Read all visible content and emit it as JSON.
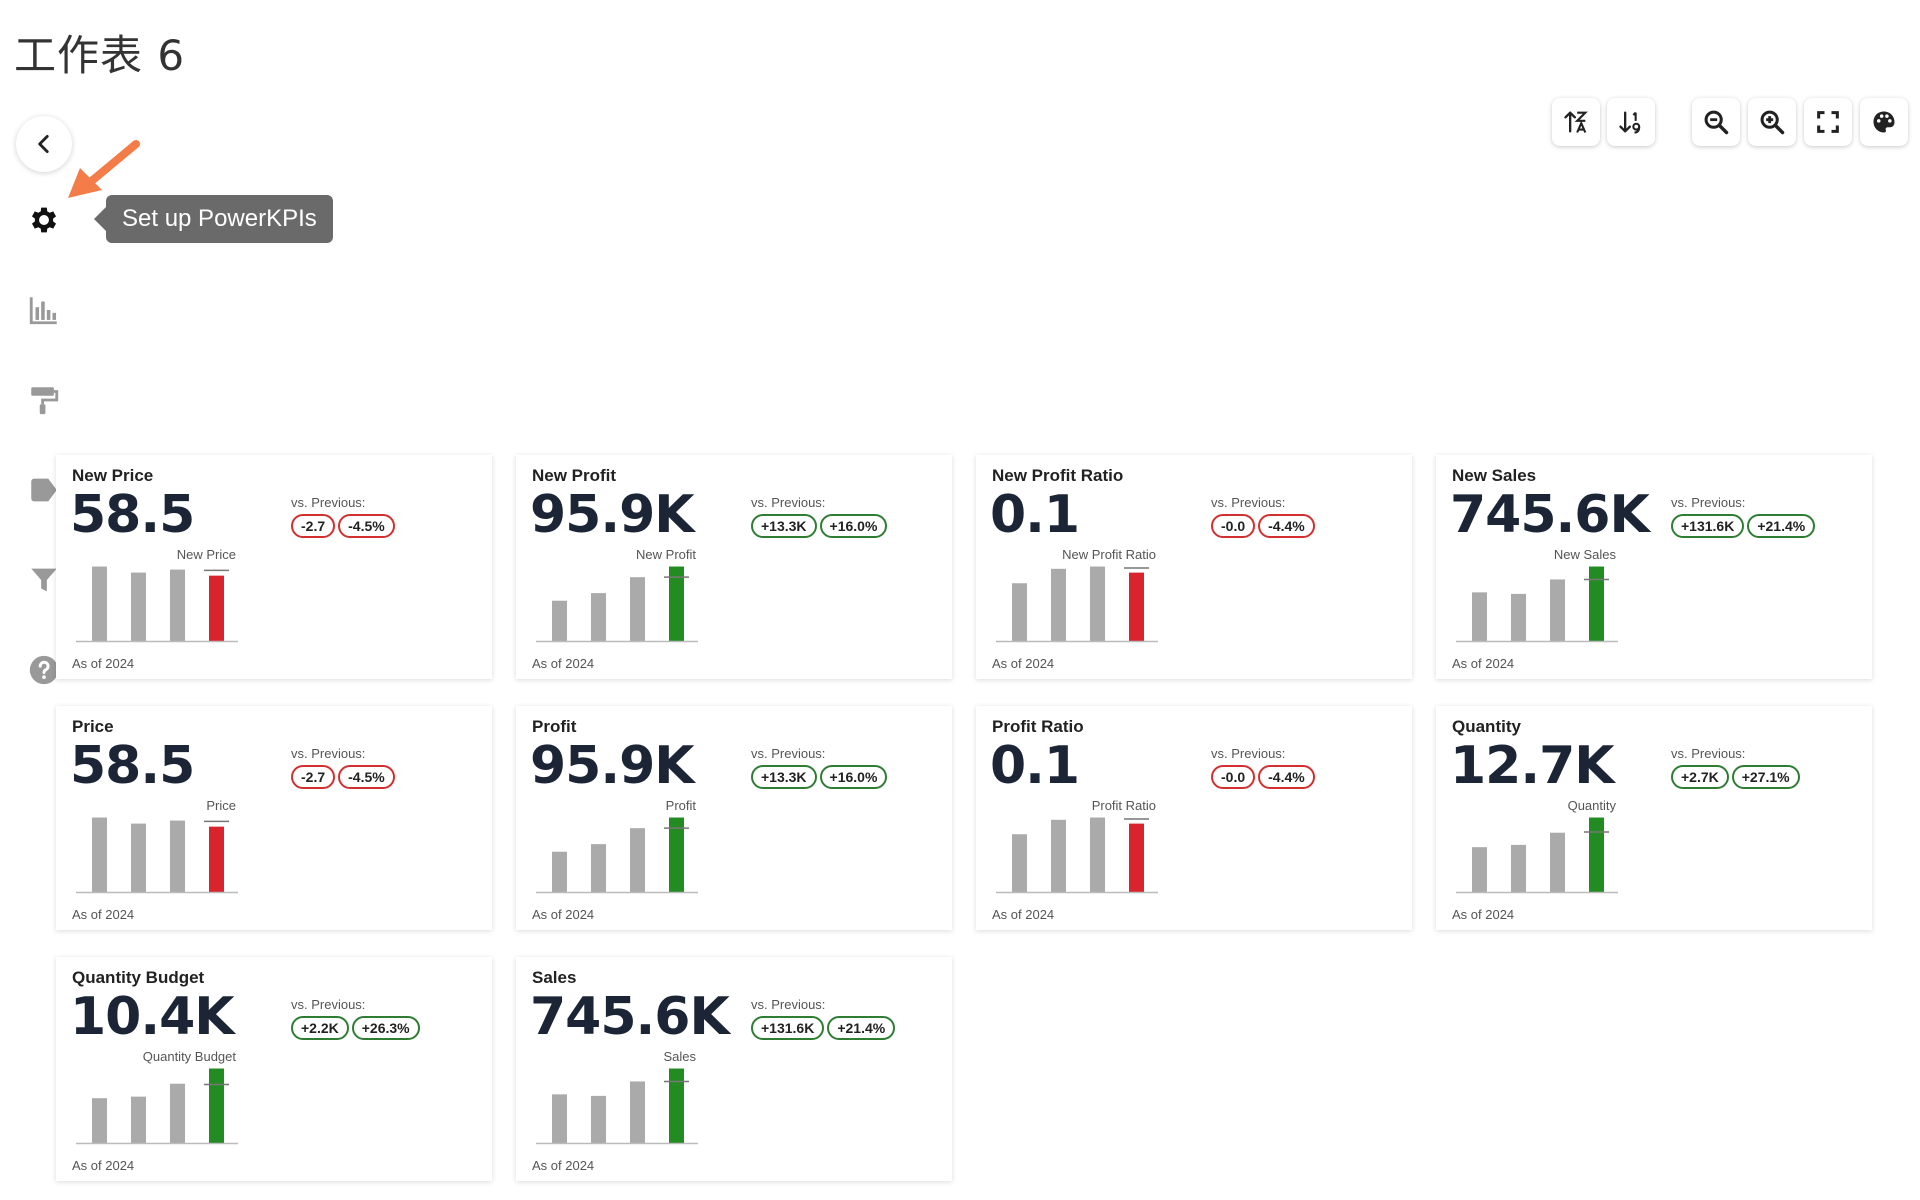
{
  "sheet": {
    "title": "工作表 6"
  },
  "toolbar": {
    "buttons": [
      {
        "name": "sort-ascending-icon"
      },
      {
        "name": "sort-descending-icon"
      },
      {
        "name": "zoom-out-icon"
      },
      {
        "name": "zoom-in-icon"
      },
      {
        "name": "fullscreen-icon"
      },
      {
        "name": "palette-icon"
      }
    ]
  },
  "rail": {
    "items": [
      {
        "name": "back-icon"
      },
      {
        "name": "gear-icon"
      },
      {
        "name": "bar-chart-icon"
      },
      {
        "name": "paint-roller-icon"
      },
      {
        "name": "tag-icon"
      },
      {
        "name": "filter-icon"
      },
      {
        "name": "help-icon"
      }
    ]
  },
  "tooltip": {
    "text": "Set up PowerKPIs"
  },
  "colors": {
    "positive": "#2e7d32",
    "negative": "#d32f2f",
    "bar_gray": "#aaaaaa",
    "bar_green": "#228b22",
    "bar_red": "#d9232d",
    "arrow": "#f47c48"
  },
  "kpis": [
    {
      "title": "New Price",
      "value": "58.5",
      "vs_label": "vs. Previous:",
      "delta_abs": "-2.7",
      "delta_pct": "-4.5%",
      "trend": "neg",
      "chart_label": "New Price",
      "as_of": "As of 2024",
      "bars": [
        0.98,
        0.9,
        0.94,
        0.86
      ],
      "target": 0.93
    },
    {
      "title": "New Profit",
      "value": "95.9K",
      "vs_label": "vs. Previous:",
      "delta_abs": "+13.3K",
      "delta_pct": "+16.0%",
      "trend": "pos",
      "chart_label": "New Profit",
      "as_of": "As of 2024",
      "bars": [
        0.53,
        0.63,
        0.84,
        0.98
      ],
      "target": 0.84
    },
    {
      "title": "New Profit Ratio",
      "value": "0.1",
      "vs_label": "vs. Previous:",
      "delta_abs": "-0.0",
      "delta_pct": "-4.4%",
      "trend": "neg",
      "chart_label": "New Profit Ratio",
      "as_of": "As of 2024",
      "bars": [
        0.76,
        0.95,
        0.98,
        0.9
      ],
      "target": 0.96
    },
    {
      "title": "New Sales",
      "value": "745.6K",
      "vs_label": "vs. Previous:",
      "delta_abs": "+131.6K",
      "delta_pct": "+21.4%",
      "trend": "pos",
      "chart_label": "New Sales",
      "as_of": "As of 2024",
      "bars": [
        0.64,
        0.62,
        0.81,
        0.98
      ],
      "target": 0.81
    },
    {
      "title": "Price",
      "value": "58.5",
      "vs_label": "vs. Previous:",
      "delta_abs": "-2.7",
      "delta_pct": "-4.5%",
      "trend": "neg",
      "chart_label": "Price",
      "as_of": "As of 2024",
      "bars": [
        0.98,
        0.9,
        0.94,
        0.86
      ],
      "target": 0.93
    },
    {
      "title": "Profit",
      "value": "95.9K",
      "vs_label": "vs. Previous:",
      "delta_abs": "+13.3K",
      "delta_pct": "+16.0%",
      "trend": "pos",
      "chart_label": "Profit",
      "as_of": "As of 2024",
      "bars": [
        0.53,
        0.63,
        0.84,
        0.98
      ],
      "target": 0.84
    },
    {
      "title": "Profit Ratio",
      "value": "0.1",
      "vs_label": "vs. Previous:",
      "delta_abs": "-0.0",
      "delta_pct": "-4.4%",
      "trend": "neg",
      "chart_label": "Profit Ratio",
      "as_of": "As of 2024",
      "bars": [
        0.76,
        0.95,
        0.98,
        0.9
      ],
      "target": 0.96
    },
    {
      "title": "Quantity",
      "value": "12.7K",
      "vs_label": "vs. Previous:",
      "delta_abs": "+2.7K",
      "delta_pct": "+27.1%",
      "trend": "pos",
      "chart_label": "Quantity",
      "as_of": "As of 2024",
      "bars": [
        0.59,
        0.62,
        0.78,
        0.98
      ],
      "target": 0.79
    },
    {
      "title": "Quantity Budget",
      "value": "10.4K",
      "vs_label": "vs. Previous:",
      "delta_abs": "+2.2K",
      "delta_pct": "+26.3%",
      "trend": "pos",
      "chart_label": "Quantity Budget",
      "as_of": "As of 2024",
      "bars": [
        0.59,
        0.61,
        0.78,
        0.98
      ],
      "target": 0.77
    },
    {
      "title": "Sales",
      "value": "745.6K",
      "vs_label": "vs. Previous:",
      "delta_abs": "+131.6K",
      "delta_pct": "+21.4%",
      "trend": "pos",
      "chart_label": "Sales",
      "as_of": "As of 2024",
      "bars": [
        0.64,
        0.62,
        0.81,
        0.98
      ],
      "target": 0.81
    }
  ]
}
